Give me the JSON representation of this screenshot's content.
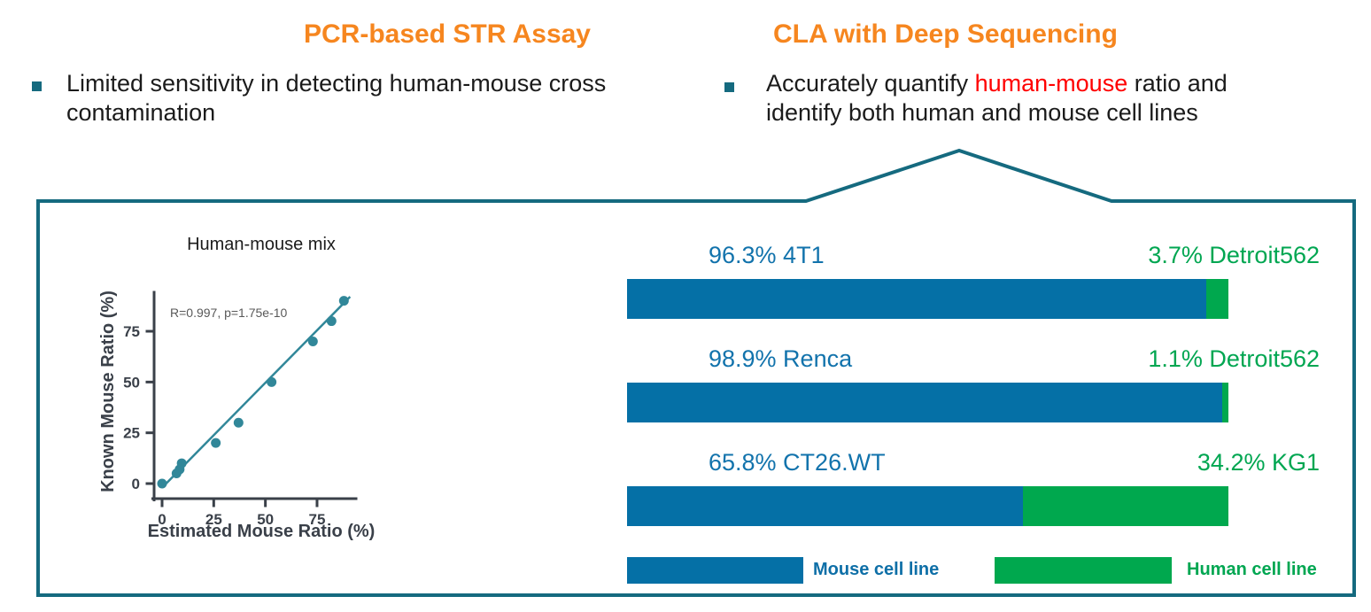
{
  "header": {
    "left": {
      "title": "PCR-based STR Assay",
      "bullet_lines": [
        "Limited sensitivity in detecting human-mouse cross",
        "contamination"
      ]
    },
    "right": {
      "title": "CLA with Deep Sequencing",
      "bullet_line1_segments": [
        {
          "text": "Accurately quantify "
        },
        {
          "text": "human-mouse",
          "highlight": true
        },
        {
          "text": " ratio and"
        }
      ],
      "bullet_line2": "identify both human and mouse cell lines"
    }
  },
  "colors": {
    "accent_orange": "#F6861F",
    "teal_outline": "#156A7F",
    "scatter_teal": "#318799",
    "axis_dark": "#3A4049",
    "annotation_gray": "#595959",
    "mouse_blue": "#0570A6",
    "human_green": "#00A84E",
    "label_blue": "#1273AC",
    "label_green": "#00A651",
    "highlight_red": "#FF0000"
  },
  "chart_data": [
    {
      "type": "scatter",
      "title": "Human-mouse mix",
      "xlabel": "Estimated Mouse Ratio (%)",
      "ylabel": "Known Mouse Ratio (%)",
      "annotation": "R=0.997, p=1.75e-10",
      "xticks": [
        0,
        25,
        50,
        75
      ],
      "yticks": [
        0,
        25,
        50,
        75
      ],
      "xlim": [
        0,
        95
      ],
      "ylim": [
        -3,
        95
      ],
      "grid": false,
      "points": [
        [
          0,
          0
        ],
        [
          7,
          5
        ],
        [
          8.5,
          7
        ],
        [
          9.5,
          10
        ],
        [
          26,
          20
        ],
        [
          37,
          30
        ],
        [
          53,
          50
        ],
        [
          73,
          70
        ],
        [
          82,
          80
        ],
        [
          88,
          90
        ]
      ],
      "trendline": {
        "x1": 0,
        "y1": -2,
        "x2": 91,
        "y2": 92
      }
    },
    {
      "type": "bar",
      "orientation": "horizontal-stacked",
      "unit": "%",
      "rows": [
        {
          "mouse_pct": 96.3,
          "mouse_label": "96.3% 4T1",
          "human_pct": 3.7,
          "human_label": "3.7% Detroit562"
        },
        {
          "mouse_pct": 98.9,
          "mouse_label": "98.9% Renca",
          "human_pct": 1.1,
          "human_label": "1.1% Detroit562"
        },
        {
          "mouse_pct": 65.8,
          "mouse_label": "65.8% CT26.WT",
          "human_pct": 34.2,
          "human_label": "34.2% KG1"
        }
      ],
      "legend": [
        {
          "label": "Mouse cell line",
          "color": "#0570A6"
        },
        {
          "label": "Human cell line",
          "color": "#00A84E"
        }
      ],
      "legend_position": "bottom"
    }
  ]
}
